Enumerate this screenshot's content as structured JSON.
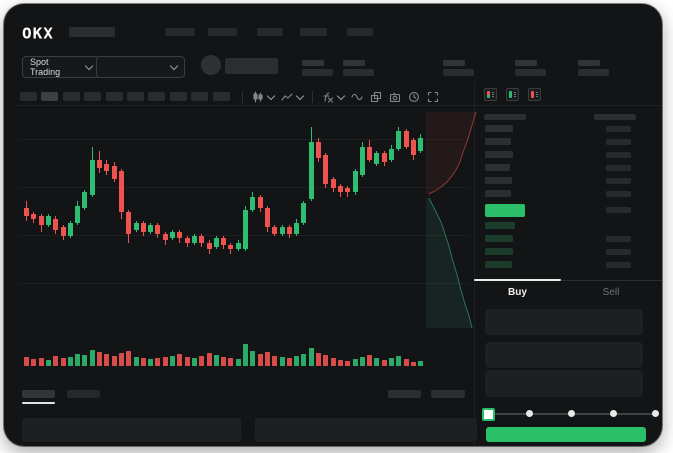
{
  "app": {
    "logo_text": "OKX"
  },
  "header": {
    "market_selector": {
      "label": "Spot Trading"
    },
    "nav_skeleton_count": 5,
    "stats_skeleton_count": 5
  },
  "toolbar": {
    "timeframe_skeleton_count": 10,
    "active_timeframe_index": 1,
    "icons": [
      {
        "name": "candle-style-icon",
        "has_chevron": true
      },
      {
        "name": "line-style-icon",
        "has_chevron": true
      },
      {
        "name": "indicators-icon",
        "has_chevron": true
      },
      {
        "name": "wave-icon",
        "has_chevron": false
      },
      {
        "name": "compare-icon",
        "has_chevron": false
      },
      {
        "name": "camera-icon",
        "has_chevron": false
      },
      {
        "name": "clock-icon",
        "has_chevron": false
      },
      {
        "name": "fullscreen-icon",
        "has_chevron": false
      }
    ]
  },
  "chart_data": {
    "type": "candlestick",
    "ylim": [
      0,
      100
    ],
    "grid": true,
    "up_color": "#2ebd71",
    "down_color": "#ee5350",
    "candles": [
      [
        57,
        53,
        60,
        51
      ],
      [
        54,
        52,
        55,
        50
      ],
      [
        53,
        49,
        54,
        46
      ],
      [
        49,
        53,
        54,
        48
      ],
      [
        52,
        47,
        53,
        45
      ],
      [
        48,
        44,
        49,
        42
      ],
      [
        44,
        50,
        51,
        43
      ],
      [
        50,
        58,
        60,
        49
      ],
      [
        57,
        64,
        65,
        56
      ],
      [
        63,
        79,
        85,
        62
      ],
      [
        79,
        75,
        83,
        73
      ],
      [
        77,
        74,
        79,
        72
      ],
      [
        76,
        70,
        78,
        69
      ],
      [
        74,
        55,
        75,
        52
      ],
      [
        55,
        45,
        56,
        41
      ],
      [
        47,
        50,
        51,
        46
      ],
      [
        50,
        46,
        51,
        44
      ],
      [
        46,
        49,
        50,
        45
      ],
      [
        49,
        45,
        50,
        43
      ],
      [
        45,
        42,
        46,
        40
      ],
      [
        43,
        46,
        47,
        42
      ],
      [
        46,
        43,
        47,
        41
      ],
      [
        43,
        41,
        44,
        39
      ],
      [
        41,
        44,
        45,
        40
      ],
      [
        44,
        41,
        45,
        39
      ],
      [
        41,
        38,
        42,
        36
      ],
      [
        39,
        43,
        44,
        38
      ],
      [
        43,
        40,
        44,
        38
      ],
      [
        40,
        38,
        41,
        36
      ],
      [
        38,
        41,
        42,
        37
      ],
      [
        38,
        56,
        58,
        37
      ],
      [
        56,
        62,
        64,
        55
      ],
      [
        62,
        57,
        63,
        55
      ],
      [
        57,
        48,
        58,
        46
      ],
      [
        48,
        45,
        49,
        44
      ],
      [
        45,
        48,
        49,
        44
      ],
      [
        48,
        45,
        49,
        43
      ],
      [
        45,
        50,
        52,
        44
      ],
      [
        50,
        59,
        60,
        49
      ],
      [
        61,
        87,
        94,
        60
      ],
      [
        87,
        80,
        89,
        78
      ],
      [
        81,
        68,
        82,
        66
      ],
      [
        70,
        66,
        71,
        64
      ],
      [
        67,
        64,
        68,
        62
      ],
      [
        66,
        64,
        67,
        62
      ],
      [
        64,
        74,
        75,
        63
      ],
      [
        72,
        85,
        87,
        71
      ],
      [
        85,
        79,
        88,
        78
      ],
      [
        77,
        82,
        83,
        76
      ],
      [
        82,
        78,
        83,
        76
      ],
      [
        79,
        84,
        86,
        78
      ],
      [
        84,
        92,
        94,
        83
      ],
      [
        92,
        85,
        93,
        84
      ],
      [
        88,
        81,
        89,
        79
      ],
      [
        83,
        89,
        91,
        82
      ]
    ],
    "volumes": [
      9,
      7,
      8,
      6,
      10,
      8,
      9,
      12,
      11,
      16,
      14,
      12,
      10,
      13,
      15,
      9,
      8,
      7,
      8,
      9,
      10,
      12,
      9,
      8,
      10,
      13,
      11,
      9,
      8,
      7,
      22,
      15,
      12,
      14,
      10,
      9,
      8,
      10,
      12,
      18,
      13,
      11,
      8,
      6,
      5,
      7,
      9,
      11,
      8,
      6,
      8,
      10,
      7,
      4,
      5
    ]
  },
  "depth": {
    "asks_points": [
      [
        50,
        2
      ],
      [
        47,
        12
      ],
      [
        44,
        22
      ],
      [
        41,
        32
      ],
      [
        37,
        42
      ],
      [
        34,
        52
      ],
      [
        30,
        60
      ],
      [
        26,
        66
      ],
      [
        21,
        72
      ],
      [
        15,
        77
      ],
      [
        9,
        81
      ],
      [
        3,
        84
      ]
    ],
    "bids_points": [
      [
        3,
        88
      ],
      [
        7,
        96
      ],
      [
        11,
        104
      ],
      [
        15,
        112
      ],
      [
        19,
        124
      ],
      [
        23,
        136
      ],
      [
        26,
        148
      ],
      [
        29,
        158
      ],
      [
        32,
        168
      ],
      [
        35,
        180
      ],
      [
        39,
        194
      ],
      [
        43,
        206
      ],
      [
        46,
        218
      ]
    ],
    "ask_color": "#ee5350",
    "bid_color": "#3dbd91"
  },
  "order_book": {
    "view_modes": [
      "combined-book-icon",
      "bids-book-icon",
      "asks-book-icon"
    ],
    "ask_rows": 6,
    "bid_rows": 4,
    "last_price_direction": "up",
    "last_price_color": "#2abf68"
  },
  "trade_panel": {
    "tabs": [
      {
        "label": "Buy",
        "active": true
      },
      {
        "label": "Sell",
        "active": false
      }
    ],
    "field_skeleton_count": 3,
    "slider": {
      "ticks": 5,
      "selected_index": 0
    },
    "submit_color": "#2abf68"
  },
  "bottom_panel": {
    "tab_skeleton_count": 2,
    "active_tab_index": 0,
    "action_skeleton_count": 2,
    "table_skeleton_count": 2
  },
  "colors": {
    "accent_green": "#2ebd71",
    "accent_red": "#ee5350",
    "buy_button": "#2abf68"
  }
}
